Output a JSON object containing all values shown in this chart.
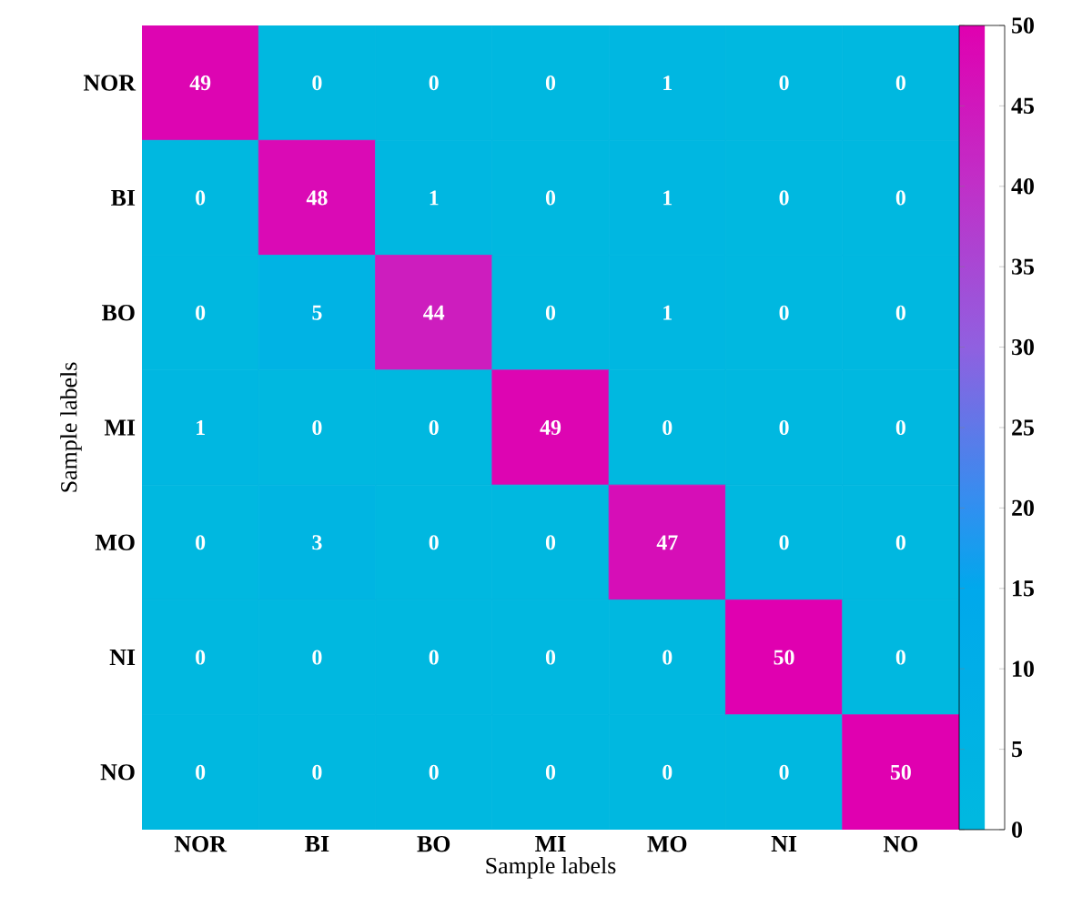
{
  "chart_data": {
    "type": "heatmap",
    "xlabel": "Sample labels",
    "ylabel": "Sample labels",
    "categories": [
      "NOR",
      "BI",
      "BO",
      "MI",
      "MO",
      "NI",
      "NO"
    ],
    "y_categories": [
      "NOR",
      "BI",
      "BO",
      "MI",
      "MO",
      "NI",
      "NO"
    ],
    "cells": [
      [
        49,
        0,
        0,
        0,
        1,
        0,
        0
      ],
      [
        0,
        48,
        1,
        0,
        1,
        0,
        0
      ],
      [
        0,
        5,
        44,
        0,
        1,
        0,
        0
      ],
      [
        1,
        0,
        0,
        49,
        0,
        0,
        0
      ],
      [
        0,
        3,
        0,
        0,
        47,
        0,
        0
      ],
      [
        0,
        0,
        0,
        0,
        0,
        50,
        0
      ],
      [
        0,
        0,
        0,
        0,
        0,
        0,
        50
      ]
    ],
    "data_labels": true,
    "clim": [
      0,
      50
    ],
    "cticks": [
      0,
      5,
      10,
      15,
      20,
      25,
      30,
      35,
      40,
      45,
      50
    ]
  }
}
